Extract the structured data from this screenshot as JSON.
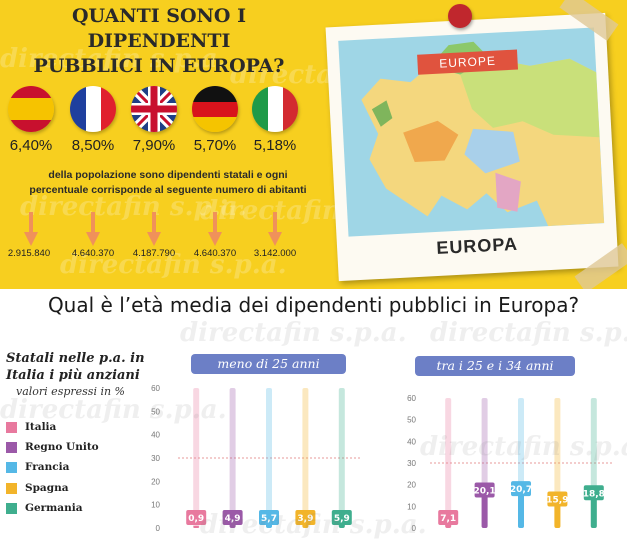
{
  "top_title": "QUANTI SONO I DIPENDENTI\nPUBBLICI IN EUROPA?",
  "top_title_line1": "QUANTI SONO I DIPENDENTI",
  "top_title_line2": "PUBBLICI IN EUROPA?",
  "watermark": "directafin s.p.a.",
  "countries_top": [
    {
      "flag": "spain-flag-icon",
      "percent": "6,40%",
      "inhabitants": "2.915.840"
    },
    {
      "flag": "france-flag-icon",
      "percent": "8,50%",
      "inhabitants": "4.640.370"
    },
    {
      "flag": "uk-flag-icon",
      "percent": "7,90%",
      "inhabitants": "4.187.790"
    },
    {
      "flag": "germany-flag-icon",
      "percent": "5,70%",
      "inhabitants": "4.640.370"
    },
    {
      "flag": "italy-flag-icon",
      "percent": "5,18%",
      "inhabitants": "3.142.000"
    }
  ],
  "description": "della popolazione sono dipendenti statali e ogni percentuale corrisponde al seguente numero di abitanti",
  "description_line1": "della popolazione sono dipendenti statali e ogni",
  "description_line2": "percentuale corrisponde al seguente numero di abitanti",
  "postcard": {
    "ribbon": "EUROPE",
    "label": "EUROPA"
  },
  "question": "Qual è l’età media dei dipendenti pubblici in Europa?",
  "side_title_line1": "Statali nelle p.a. in",
  "side_title_line2": "Italia i più anziani",
  "side_subtitle": "valori espressi in %",
  "legend": [
    {
      "label": "Italia",
      "color": "#e8799e"
    },
    {
      "label": "Regno Unito",
      "color": "#9b59a8"
    },
    {
      "label": "Francia",
      "color": "#55b8e6"
    },
    {
      "label": "Spagna",
      "color": "#f2b42a"
    },
    {
      "label": "Germania",
      "color": "#3fae8e"
    }
  ],
  "colors": {
    "yellow": "#f7cf1f",
    "panel_header": "#6c7fc6",
    "arrow": "#f0915a"
  },
  "chart_data": [
    {
      "type": "bar",
      "title": "meno di 25 anni",
      "categories": [
        "Italia",
        "Regno Unito",
        "Francia",
        "Spagna",
        "Germania"
      ],
      "values": [
        0.9,
        4.9,
        5.7,
        3.9,
        5.9
      ],
      "value_labels": [
        "0,9",
        "4,9",
        "5,7",
        "3,9",
        "5,9"
      ],
      "ylim": [
        0,
        60
      ],
      "yticks": [
        "0",
        "10",
        "20",
        "30",
        "40",
        "50",
        "60"
      ],
      "reference_line": 30
    },
    {
      "type": "bar",
      "title": "tra i 25 e i 34 anni",
      "categories": [
        "Italia",
        "Regno Unito",
        "Francia",
        "Spagna",
        "Germania"
      ],
      "values": [
        7.1,
        20.1,
        20.7,
        15.9,
        18.8
      ],
      "value_labels": [
        "7,1",
        "20,1",
        "20,7",
        "15,9",
        "18,8"
      ],
      "ylim": [
        0,
        60
      ],
      "yticks": [
        "0",
        "10",
        "20",
        "30",
        "40",
        "50",
        "60"
      ],
      "reference_line": 30
    }
  ]
}
